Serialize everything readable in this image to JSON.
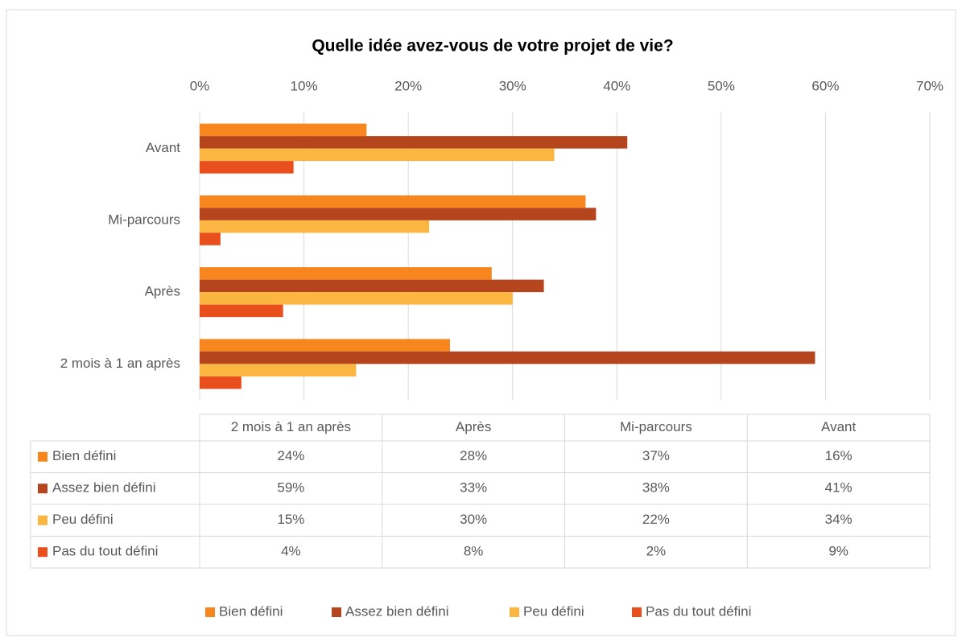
{
  "chart_data": {
    "type": "bar",
    "orientation": "horizontal",
    "title": "Quelle idée avez-vous de votre projet de vie?",
    "categories": [
      "2 mois à 1 an après",
      "Après",
      "Mi-parcours",
      "Avant"
    ],
    "series": [
      {
        "name": "Bien défini",
        "color": "#f7861f",
        "values": [
          24,
          28,
          37,
          16
        ],
        "value_labels": [
          "24%",
          "28%",
          "37%",
          "16%"
        ]
      },
      {
        "name": "Assez bien défini",
        "color": "#b4451c",
        "values": [
          59,
          33,
          38,
          41
        ],
        "value_labels": [
          "59%",
          "33%",
          "38%",
          "41%"
        ]
      },
      {
        "name": "Peu défini",
        "color": "#fbb641",
        "values": [
          15,
          30,
          22,
          34
        ],
        "value_labels": [
          "15%",
          "30%",
          "22%",
          "34%"
        ]
      },
      {
        "name": "Pas du tout défini",
        "color": "#e84f1d",
        "values": [
          4,
          8,
          2,
          9
        ],
        "value_labels": [
          "4%",
          "8%",
          "2%",
          "9%"
        ]
      }
    ],
    "xlim": [
      0,
      70
    ],
    "xticks": [
      {
        "value": 0,
        "label": "0%"
      },
      {
        "value": 10,
        "label": "10%"
      },
      {
        "value": 20,
        "label": "20%"
      },
      {
        "value": 30,
        "label": "30%"
      },
      {
        "value": 40,
        "label": "40%"
      },
      {
        "value": 50,
        "label": "50%"
      },
      {
        "value": 60,
        "label": "60%"
      },
      {
        "value": 70,
        "label": "70%"
      }
    ],
    "grid": true,
    "legend": "bottom",
    "data_table": true
  }
}
